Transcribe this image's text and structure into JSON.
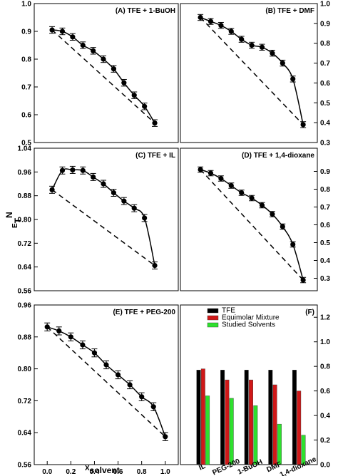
{
  "chart_data": [
    {
      "type": "line",
      "title": "(A) TFE + 1-BuOH",
      "x": [
        0,
        0.1,
        0.2,
        0.3,
        0.4,
        0.5,
        0.6,
        0.7,
        0.8,
        0.9,
        1
      ],
      "xlim": [
        -0.174,
        1.229
      ],
      "values": [
        0.905,
        0.9,
        0.88,
        0.85,
        0.83,
        0.8,
        0.765,
        0.715,
        0.67,
        0.63,
        0.57
      ],
      "error": 0.012,
      "color": "#000000",
      "ylim": [
        0.5,
        1
      ],
      "yticks": [
        0.5,
        0.6,
        0.7,
        0.8,
        0.9,
        {
          "value": 1,
          "label": "1.0"
        }
      ],
      "yaxis_side": "left",
      "reference_line": true
    },
    {
      "type": "line",
      "title": "(B) TFE + DMF",
      "x": [
        0,
        0.1,
        0.2,
        0.3,
        0.4,
        0.5,
        0.6,
        0.7,
        0.8,
        0.9,
        1
      ],
      "xlim": [
        -0.195,
        1.138
      ],
      "values": [
        0.93,
        0.91,
        0.89,
        0.86,
        0.82,
        0.79,
        0.78,
        0.75,
        0.7,
        0.62,
        0.39
      ],
      "error": 0.015,
      "color": "#000000",
      "ylim": [
        0.3,
        1
      ],
      "yticks": [
        0.3,
        0.4,
        0.5,
        0.6,
        0.7,
        0.8,
        0.9,
        {
          "value": 1,
          "label": "1.0"
        }
      ],
      "yaxis_side": "right",
      "reference_line": true
    },
    {
      "type": "line",
      "title": "(C) TFE + IL",
      "x": [
        0,
        0.1,
        0.2,
        0.3,
        0.4,
        0.5,
        0.6,
        0.7,
        0.8,
        0.9,
        1
      ],
      "xlim": [
        -0.174,
        1.229
      ],
      "values": [
        0.9,
        0.965,
        0.967,
        0.965,
        0.943,
        0.92,
        0.89,
        0.862,
        0.838,
        0.805,
        0.645
      ],
      "error": 0.012,
      "color": "#000000",
      "ylim": [
        0.56,
        1.04
      ],
      "yticks": [
        0.56,
        0.64,
        0.72,
        {
          "value": 0.8,
          "label": "0.80"
        },
        0.88,
        0.96,
        1.04
      ],
      "yaxis_side": "left",
      "reference_line": true,
      "ylabel": {
        "main": "E",
        "sub": "T",
        "sup": "N"
      }
    },
    {
      "type": "line",
      "title": "(D) TFE + 1,4-dioxane",
      "x": [
        0,
        0.1,
        0.2,
        0.3,
        0.4,
        0.5,
        0.6,
        0.7,
        0.8,
        0.9,
        1
      ],
      "xlim": [
        -0.195,
        1.138
      ],
      "values": [
        0.91,
        0.89,
        0.86,
        0.82,
        0.78,
        0.75,
        0.71,
        0.66,
        0.59,
        0.49,
        0.29
      ],
      "error": 0.015,
      "color": "#000000",
      "ylim": [
        0.23,
        1.03
      ],
      "yticks": [
        0.3,
        0.4,
        0.5,
        0.6,
        0.7,
        0.8,
        0.9
      ],
      "yaxis_side": "right",
      "reference_line": true
    },
    {
      "type": "line",
      "title": "(E) TFE + PEG-200",
      "x": [
        0,
        0.1,
        0.2,
        0.3,
        0.4,
        0.5,
        0.6,
        0.7,
        0.8,
        0.9,
        1
      ],
      "xlim": [
        -0.11,
        1.11
      ],
      "values": [
        0.905,
        0.895,
        0.88,
        0.86,
        0.84,
        0.81,
        0.785,
        0.76,
        0.73,
        0.705,
        0.63
      ],
      "error": 0.01,
      "color": "#000000",
      "ylim": [
        0.56,
        0.96
      ],
      "yticks": [
        0.56,
        0.64,
        0.72,
        {
          "value": 0.8,
          "label": "0.80"
        },
        0.88,
        0.96
      ],
      "yaxis_side": "left",
      "reference_line": true,
      "xticks": [
        {
          "value": 0,
          "label": "0.0"
        },
        0.2,
        0.4,
        0.6,
        0.8,
        {
          "value": 1,
          "label": "1.0"
        }
      ],
      "xlabel": {
        "main": "X",
        "sub": "solvent"
      }
    },
    {
      "type": "bar",
      "title": "(F)",
      "categories": [
        "IL",
        "PEG-200",
        "1-BuOH",
        "DMF",
        "1,4-dioxane"
      ],
      "series": [
        {
          "name": "TFE",
          "color": "#000000",
          "values": [
            0.77,
            0.77,
            0.77,
            0.77,
            0.77
          ]
        },
        {
          "name": "Equimolar Mixture",
          "color": "#d01818",
          "values": [
            0.78,
            0.69,
            0.69,
            0.65,
            0.6
          ]
        },
        {
          "name": "Studied Solvents",
          "color": "#2ee02e",
          "values": [
            0.56,
            0.54,
            0.48,
            0.33,
            0.24
          ]
        }
      ],
      "ylim": [
        0,
        1.3
      ],
      "yticks": [
        {
          "value": 0,
          "label": "0.0"
        },
        0.2,
        0.4,
        0.6,
        0.8,
        {
          "value": 1,
          "label": "1.0"
        },
        1.2
      ],
      "yaxis_side": "right",
      "legend": "upper left"
    }
  ]
}
